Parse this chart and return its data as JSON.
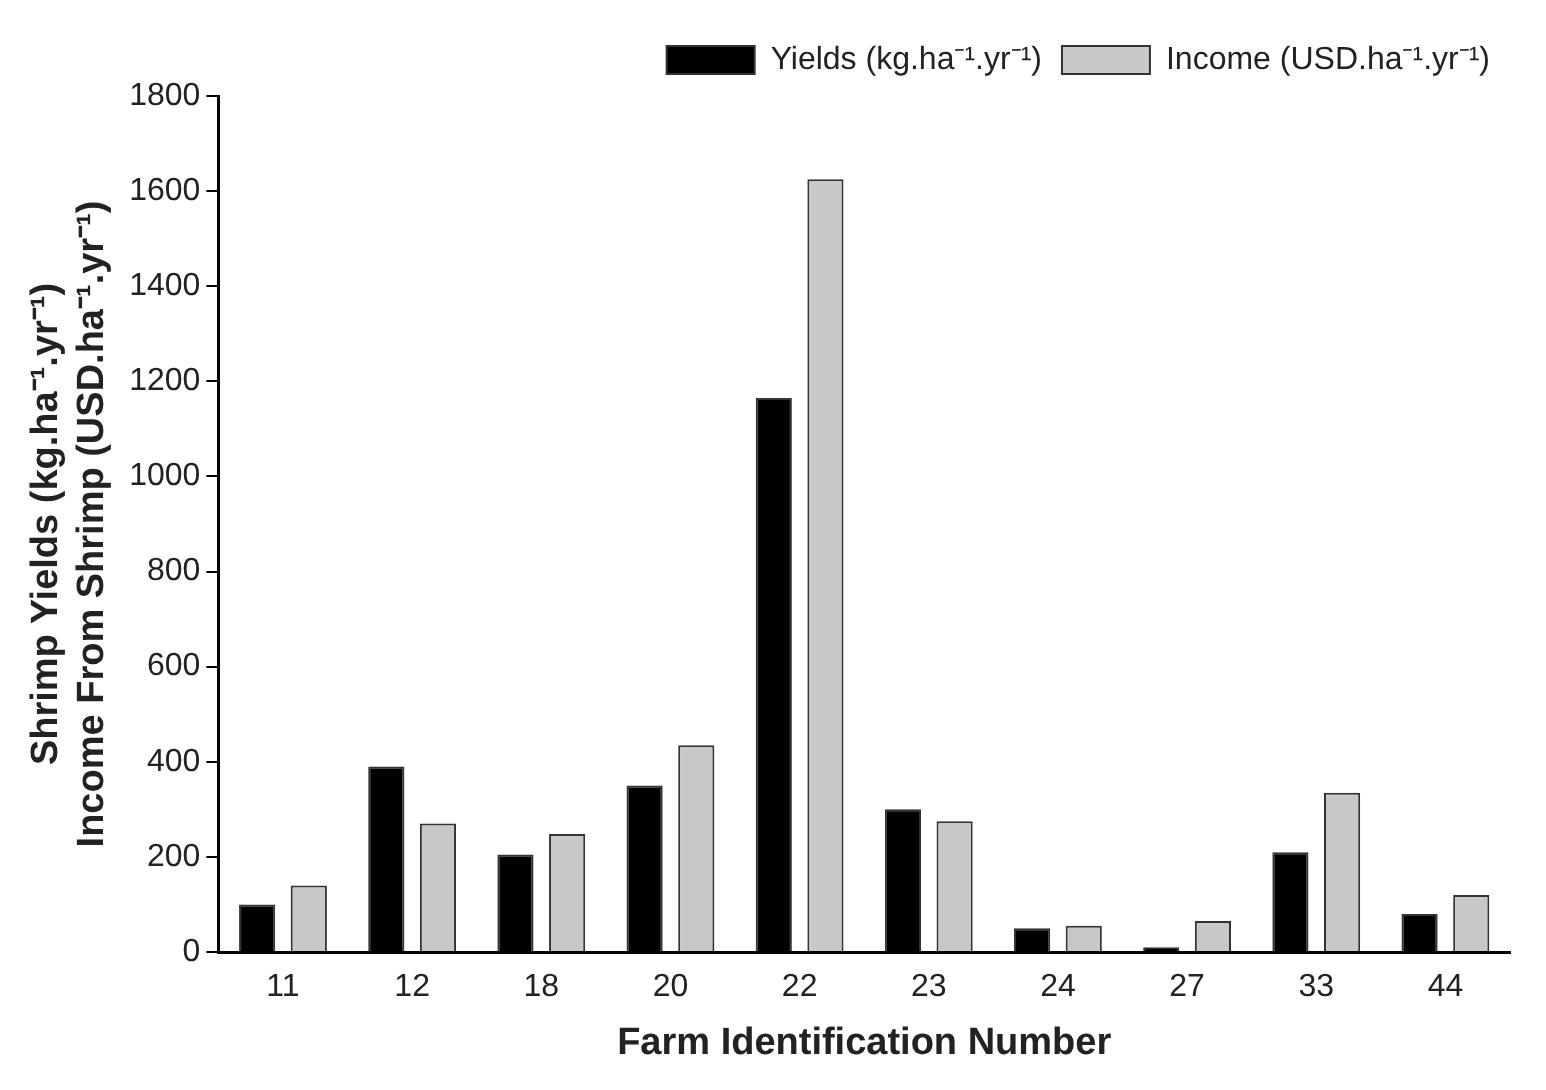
{
  "chart_data": {
    "type": "bar",
    "xlabel": "Farm Identification Number",
    "ylabel": "Shrimp Yields (kg.ha⁻¹.yr⁻¹)\nIncome From Shrimp (USD.ha⁻¹.yr⁻¹)",
    "categories": [
      "11",
      "12",
      "18",
      "20",
      "22",
      "23",
      "24",
      "27",
      "33",
      "44"
    ],
    "series": [
      {
        "name": "Yields (kg.ha⁻¹.yr⁻¹)",
        "color": "#000000",
        "values": [
          100,
          390,
          205,
          350,
          1165,
          300,
          50,
          10,
          210,
          80
        ]
      },
      {
        "name": "Income (USD.ha⁻¹.yr⁻¹)",
        "color": "#c8c8c8",
        "values": [
          140,
          270,
          248,
          435,
          1625,
          275,
          55,
          65,
          335,
          120
        ]
      }
    ],
    "ylim": [
      0,
      1800
    ],
    "yticks": [
      0,
      200,
      400,
      600,
      800,
      1000,
      1200,
      1400,
      1600,
      1800
    ],
    "grid": false,
    "legend": "top right"
  }
}
